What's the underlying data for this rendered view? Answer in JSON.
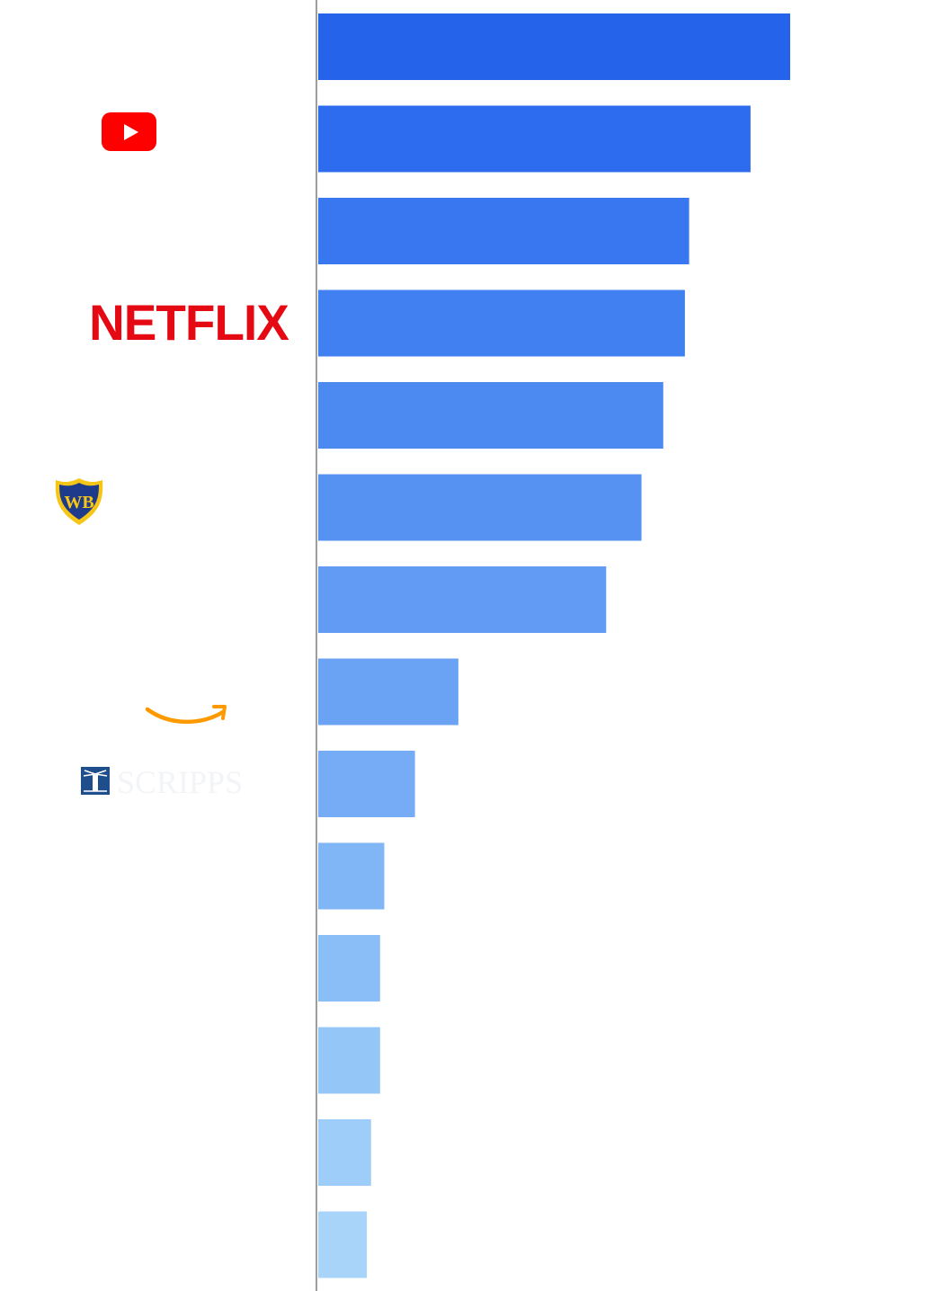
{
  "chart_data": {
    "type": "bar",
    "orientation": "horizontal",
    "title": "",
    "xlabel": "",
    "ylabel": "",
    "grid": false,
    "legend": "none",
    "xlim": [
      0,
      100
    ],
    "values": [
      100,
      91.6,
      78.6,
      77.7,
      73.1,
      68.5,
      61.0,
      29.7,
      20.5,
      14.0,
      13.1,
      13.1,
      11.2,
      10.3
    ],
    "bar_colors": [
      "#2563eb",
      "#2d6cee",
      "#3877ef",
      "#4180f0",
      "#4c89f1",
      "#5692f2",
      "#619bf3",
      "#6ba3f4",
      "#76acf5",
      "#80b5f6",
      "#89bef7",
      "#94c6f8",
      "#9ecdf9",
      "#a8d4fa"
    ],
    "logos": [
      {
        "row": 1,
        "name": "youtube-logo",
        "colors": {
          "bg": "#ff0000",
          "fg": "#ffffff"
        }
      },
      {
        "row": 3,
        "name": "netflix-logo",
        "text": "NETFLIX",
        "colors": {
          "fg": "#e50914"
        }
      },
      {
        "row": 5,
        "name": "warner-bros-logo",
        "text": "WB",
        "colors": {
          "shield": "#1e3a8a",
          "rim": "#f5c518"
        }
      },
      {
        "row": 7,
        "name": "amazon-logo",
        "colors": {
          "smile": "#ff9900"
        }
      },
      {
        "row": 8,
        "name": "scripps-logo",
        "text": "SCRIPPS",
        "colors": {
          "mark": "#1f4e8c",
          "text": "#f2f4f7"
        }
      }
    ],
    "axis_color": "#9e9e9e"
  }
}
